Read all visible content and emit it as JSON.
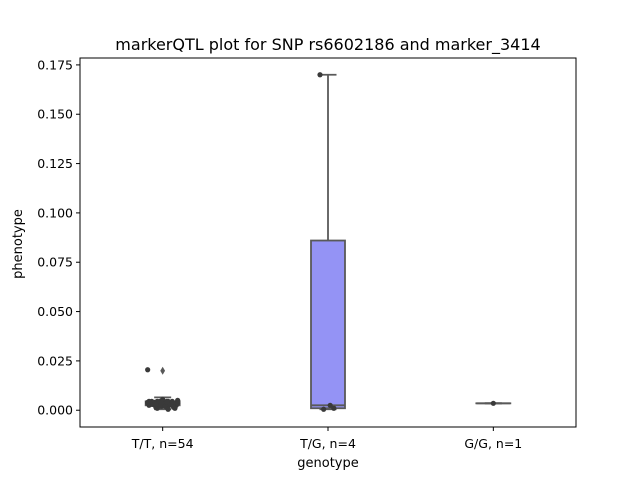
{
  "chart_data": {
    "type": "box",
    "title": "markerQTL plot for SNP rs6602186 and marker_3414",
    "xlabel": "genotype",
    "ylabel": "phenotype",
    "ylim": [
      -0.0085,
      0.1785
    ],
    "yticks": [
      0.0,
      0.025,
      0.05,
      0.075,
      0.1,
      0.125,
      0.15,
      0.175
    ],
    "ytick_labels": [
      "0.000",
      "0.025",
      "0.050",
      "0.075",
      "0.100",
      "0.125",
      "0.150",
      "0.175"
    ],
    "categories": [
      "T/T, n=54",
      "T/G, n=4",
      "G/G, n=1"
    ],
    "box_color": "#9493f5",
    "edge_color": "#595959",
    "point_color": "#3a3a3a",
    "boxes": [
      {
        "q1": 0.0025,
        "median": 0.0035,
        "q3": 0.0045,
        "whisker_low": 0.0005,
        "whisker_high": 0.0065,
        "outliers": [
          0.02
        ]
      },
      {
        "q1": 0.001,
        "median": 0.0025,
        "q3": 0.086,
        "whisker_low": 0.0005,
        "whisker_high": 0.17,
        "outliers": []
      },
      {
        "q1": 0.0035,
        "median": 0.0035,
        "q3": 0.0035,
        "whisker_low": 0.0035,
        "whisker_high": 0.0035,
        "outliers": []
      }
    ],
    "points": [
      [
        0.0205,
        0.0045,
        0.004,
        0.0035,
        0.003,
        0.0025,
        0.002,
        0.0015,
        0.001,
        0.004,
        0.0035,
        0.003,
        0.0045,
        0.0025,
        0.0035,
        0.003,
        0.004,
        0.002,
        0.005,
        0.0035,
        0.003,
        0.0025,
        0.0045,
        0.004,
        0.0015,
        0.0035,
        0.003,
        0.002,
        0.004,
        0.0045,
        0.0025,
        0.0035,
        0.0055,
        0.003,
        0.004,
        0.001,
        0.0035,
        0.0025,
        0.0045,
        0.003,
        0.004,
        0.0035,
        0.002,
        0.003,
        0.0045,
        0.0025,
        0.0035,
        0.004,
        0.003,
        0.0015,
        0.0035,
        0.0045,
        0.0005,
        0.003
      ],
      [
        0.17,
        0.0025,
        0.0005,
        0.001
      ],
      [
        0.0035
      ]
    ]
  }
}
